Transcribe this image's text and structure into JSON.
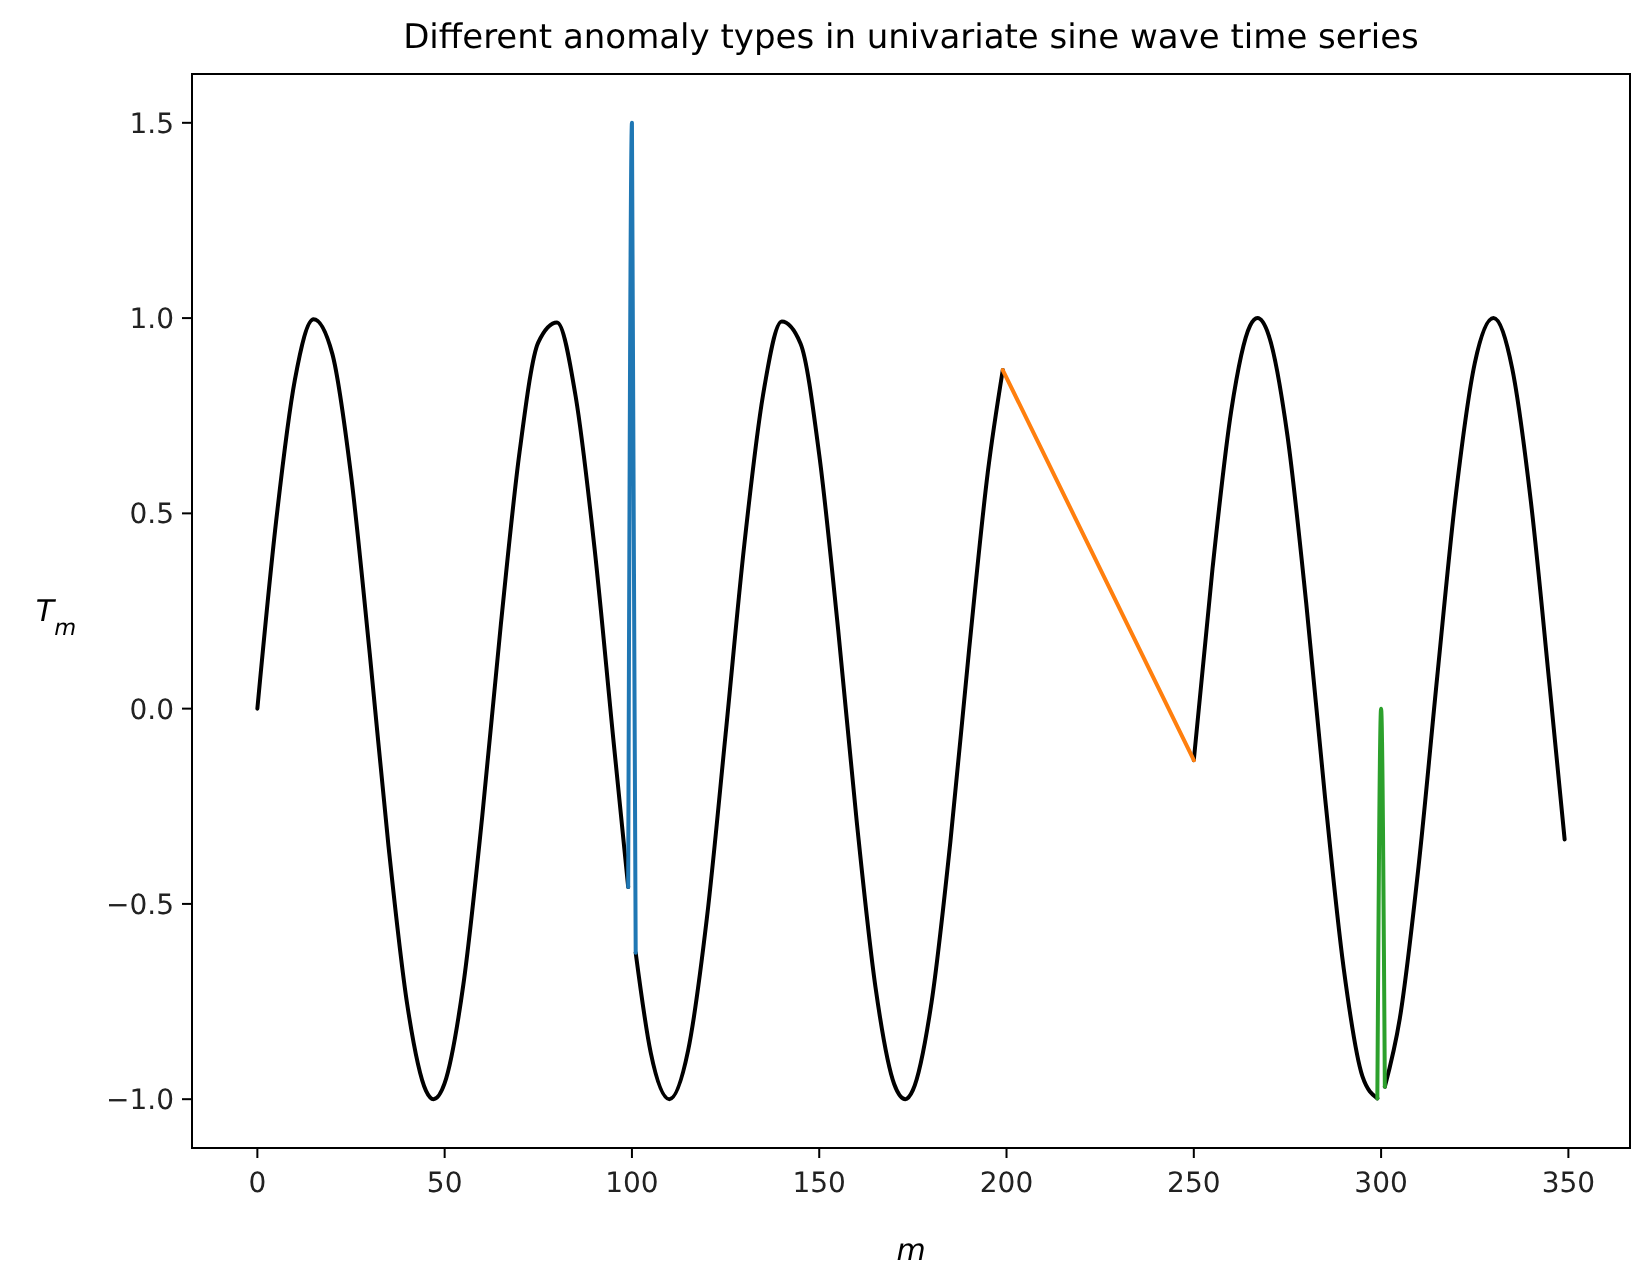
{
  "chart_data": {
    "type": "line",
    "title": "Different anomaly types in univariate sine wave time series",
    "xlabel": "m",
    "ylabel": "T$_{m}$",
    "xlim": [
      -17.45,
      366.45
    ],
    "ylim": [
      -1.125,
      1.625
    ],
    "xticks": [
      0,
      50,
      100,
      150,
      200,
      250,
      300,
      350
    ],
    "yticks": [
      {
        "value": -1,
        "label": "−1.0"
      },
      {
        "value": -0.5,
        "label": "−0.5"
      },
      {
        "value": 0,
        "label": "0.0"
      },
      {
        "value": 0.5,
        "label": "0.5"
      },
      {
        "value": 1,
        "label": "1.0"
      },
      {
        "value": 1.5,
        "label": "1.5"
      }
    ],
    "marker": "none",
    "line_style": "solid",
    "series": [
      {
        "color": "#000000",
        "x": [
          0,
          5,
          10,
          15,
          20,
          25,
          30,
          35,
          40,
          45,
          47,
          50,
          55,
          60,
          65,
          70,
          75,
          80,
          85,
          90,
          95,
          99,
          100,
          101,
          105,
          110,
          115,
          120,
          125,
          130,
          135,
          140,
          145,
          150,
          155,
          160,
          165,
          170,
          173,
          175,
          180,
          185,
          190,
          195,
          199,
          225,
          250,
          255,
          260,
          265,
          267,
          270,
          275,
          280,
          285,
          290,
          295,
          299,
          300,
          301,
          305,
          310,
          315,
          320,
          325,
          330,
          335,
          340,
          345,
          349
        ],
        "values": [
          0,
          0.479,
          0.841,
          0.997,
          0.909,
          0.598,
          0.141,
          -0.351,
          -0.757,
          -0.978,
          -1.0,
          -0.959,
          -0.706,
          -0.279,
          0.215,
          0.657,
          0.938,
          0.989,
          0.798,
          0.412,
          -0.075,
          -0.457,
          null,
          -0.625,
          -0.88,
          -1.0,
          -0.875,
          -0.537,
          -0.066,
          0.42,
          0.803,
          0.991,
          0.935,
          0.65,
          0.207,
          -0.288,
          -0.712,
          -0.961,
          -1.0,
          -0.977,
          -0.751,
          -0.342,
          0.15,
          0.605,
          0.867,
          null,
          -0.132,
          0.359,
          0.763,
          0.98,
          1.0,
          0.956,
          0.699,
          0.271,
          -0.224,
          -0.664,
          -0.941,
          -0.998,
          null,
          -0.968,
          -0.793,
          -0.404,
          0.083,
          0.551,
          0.884,
          1.0,
          0.871,
          0.529,
          0.057,
          -0.335
        ]
      },
      {
        "color": "#1f77b4",
        "x": [
          99,
          100,
          101
        ],
        "values": [
          -0.457,
          1.5,
          -0.625
        ]
      },
      {
        "color": "#ff7f0e",
        "x": [
          199,
          250
        ],
        "values": [
          0.867,
          -0.132
        ]
      },
      {
        "color": "#2ca02c",
        "x": [
          299,
          300,
          301
        ],
        "values": [
          -0.998,
          0.0,
          -0.968
        ]
      }
    ]
  }
}
